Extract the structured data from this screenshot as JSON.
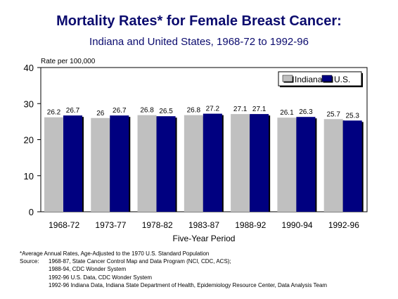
{
  "chart_data": {
    "type": "bar",
    "title": "Mortality Rates* for Female Breast Cancer:",
    "subtitle": "Indiana and United States, 1968-72 to 1992-96",
    "ylabel": "Rate per 100,000",
    "xlabel": "Five-Year Period",
    "ylim": [
      0,
      40
    ],
    "yticks": [
      0,
      10,
      20,
      30,
      40
    ],
    "categories": [
      "1968-72",
      "1973-77",
      "1978-82",
      "1983-87",
      "1988-92",
      "1990-94",
      "1992-96"
    ],
    "series": [
      {
        "name": "Indiana",
        "color": "#c0c0c0",
        "values": [
          26.2,
          26,
          26.8,
          26.8,
          27.1,
          26.1,
          25.7
        ],
        "labels": [
          "26.2",
          "26",
          "26.8",
          "26.8",
          "27.1",
          "26.1",
          "25.7"
        ]
      },
      {
        "name": "U.S.",
        "color": "#000080",
        "values": [
          26.7,
          26.7,
          26.5,
          27.2,
          27.1,
          26.3,
          25.3
        ],
        "labels": [
          "26.7",
          "26.7",
          "26.5",
          "27.2",
          "27.1",
          "26.3",
          "25.3"
        ]
      }
    ],
    "legend_position": "top-right",
    "grid": false
  },
  "footnotes": {
    "note": "*Average Annual Rates, Age-Adjusted to the 1970 U.S. Standard Population",
    "source_label": "Source:",
    "source_lines": [
      "1968-87, State Cancer Control Map and Data Program (NCI, CDC, ACS);",
      "1988-94, CDC Wonder System",
      "1992-96 U.S. Data, CDC Wonder System",
      "1992-96 Indiana Data, Indiana State Department of Health, Epidemiology Resource Center, Data Analysis Team"
    ]
  }
}
